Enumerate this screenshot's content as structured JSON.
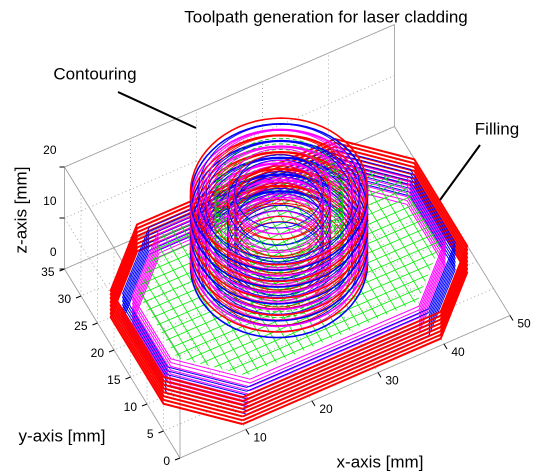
{
  "chart_data": {
    "type": "toolpath3d",
    "title": "Toolpath generation for laser cladding",
    "xlabel": "x-axis [mm]",
    "ylabel": "y-axis [mm]",
    "zlabel": "z-axis [mm]",
    "xlim": [
      0,
      50
    ],
    "ylim": [
      0,
      35
    ],
    "zlim": [
      0,
      20
    ],
    "xticks": [
      10,
      20,
      30,
      40,
      50
    ],
    "yticks": [
      0,
      5,
      10,
      15,
      20,
      25,
      30,
      35
    ],
    "zticks": [
      0,
      10,
      20
    ],
    "annotations": [
      "Contouring",
      "Filling"
    ],
    "grid": true
  }
}
